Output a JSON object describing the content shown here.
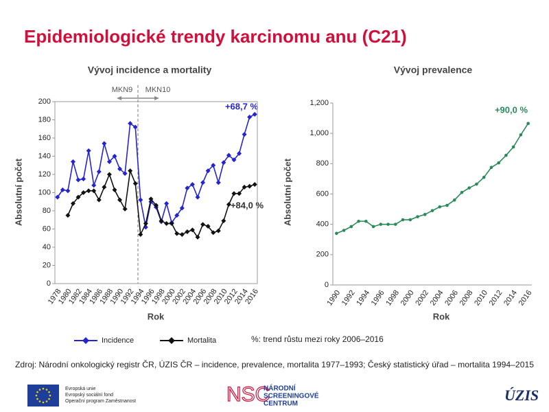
{
  "title": "Epidemiologické trendy karcinomu anu (C21)",
  "chart_data": [
    {
      "type": "line",
      "title": "Vývoj incidence a mortality",
      "x_label": "Rok",
      "y_label": "Absolutní počet",
      "categories": [
        "1978",
        null,
        "1980",
        null,
        "1982",
        null,
        "1984",
        null,
        "1986",
        null,
        "1988",
        null,
        "1990",
        null,
        "1992",
        null,
        "1994",
        null,
        "1996",
        null,
        "1998",
        null,
        "2000",
        null,
        "2002",
        null,
        "2004",
        null,
        "2006",
        null,
        "2008",
        null,
        "2010",
        null,
        "2012",
        null,
        "2014",
        null,
        "2016"
      ],
      "series": [
        {
          "name": "Incidence",
          "color": "#2323d0",
          "marker": "diamond",
          "values": [
            95,
            103,
            102,
            134,
            114,
            115,
            146,
            108,
            123,
            154,
            134,
            140,
            126,
            121,
            176,
            172,
            92,
            62,
            90,
            84,
            68,
            88,
            67,
            75,
            83,
            105,
            109,
            95,
            111,
            124,
            130,
            111,
            133,
            141,
            136,
            143,
            164,
            183,
            186
          ]
        },
        {
          "name": "Mortalita",
          "color": "#111111",
          "marker": "diamond",
          "values": [
            null,
            null,
            75,
            88,
            95,
            100,
            102,
            102,
            92,
            106,
            120,
            103,
            92,
            82,
            124,
            110,
            54,
            66,
            93,
            86,
            69,
            66,
            66,
            55,
            54,
            57,
            59,
            51,
            65,
            63,
            56,
            58,
            69,
            87,
            99,
            99,
            106,
            107,
            109
          ]
        }
      ],
      "ylim": [
        0,
        200
      ],
      "yticks": [
        0,
        20,
        40,
        60,
        80,
        100,
        120,
        140,
        160,
        180,
        200
      ],
      "grid": false,
      "frame": true,
      "annotations": [
        "+68,7 %",
        "+84,0 %",
        "MKN9",
        "MKN10"
      ]
    },
    {
      "type": "line",
      "title": "Vývoj prevalence",
      "x_label": "Rok",
      "y_label": "Absolutní počet",
      "categories": [
        "1990",
        null,
        "1992",
        null,
        "1994",
        null,
        "1996",
        null,
        "1998",
        null,
        "2000",
        null,
        "2002",
        null,
        "2004",
        null,
        "2006",
        null,
        "2008",
        null,
        "2010",
        null,
        "2012",
        null,
        "2014",
        null,
        "2016"
      ],
      "series": [
        {
          "name": "Prevalence",
          "color": "#2a8a5a",
          "marker": "circle",
          "values": [
            340,
            360,
            385,
            420,
            420,
            385,
            400,
            400,
            400,
            430,
            430,
            450,
            465,
            490,
            515,
            525,
            560,
            610,
            640,
            665,
            710,
            775,
            805,
            855,
            910,
            990,
            1065
          ]
        }
      ],
      "ylim": [
        0,
        1200
      ],
      "yticks": [
        0,
        200,
        400,
        600,
        800,
        {
          "value": 1000,
          "label": "1,000"
        },
        {
          "value": 1200,
          "label": "1,200"
        }
      ],
      "grid": false,
      "frame": false,
      "annotations": [
        "+90,0 %"
      ]
    }
  ],
  "note": "%: trend růstu mezi roky 2006–2016",
  "source": "Zdroj: Národní onkologický registr ČR, ÚZIS ČR – incidence, prevalence, mortalita 1977–1993; Český statistický úřad – mortalita 1994–2015",
  "footer": {
    "eu": [
      "Evropská unie",
      "Evropský sociální fond",
      "Operační program Zaměstnanost"
    ],
    "nsc": "NSC",
    "nsc_name": [
      "NÁRODNÍ",
      "SCREENINGOVÉ",
      "CENTRUM"
    ],
    "uzis": "ÚZIS"
  }
}
